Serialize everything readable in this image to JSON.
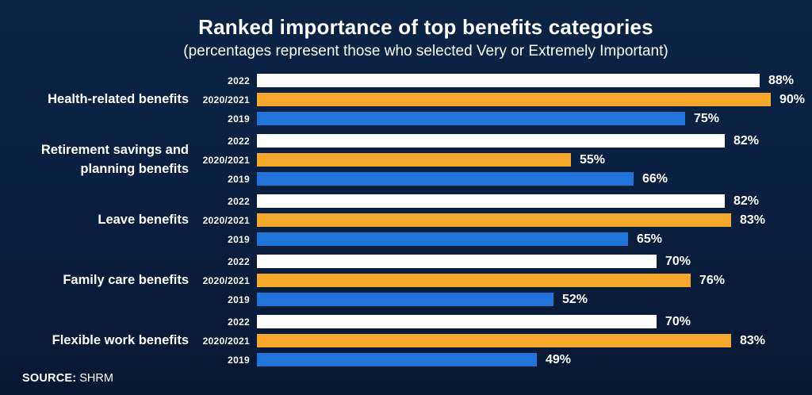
{
  "page": {
    "title": "Ranked importance of top benefits categories",
    "subtitle": "(percentages represent those who selected Very or Extremely Important)",
    "source_label": "SOURCE:",
    "source_value": "SHRM"
  },
  "colors": {
    "background_top": "#0b2444",
    "background_bottom": "#071834",
    "text": "#ffffff",
    "series_2022": "#ffffff",
    "series_2020_2021": "#f6a82c",
    "series_2019": "#2073d8"
  },
  "chart_data": {
    "type": "bar",
    "orientation": "horizontal",
    "title": "Ranked importance of top benefits categories",
    "subtitle": "(percentages represent those who selected Very or Extremely Important)",
    "unit": "%",
    "value_range": [
      0,
      100
    ],
    "grid": false,
    "legend_position": "none (each bar labeled by year)",
    "categories": [
      "Health-related benefits",
      "Retirement savings and planning benefits",
      "Leave benefits",
      "Family care benefits",
      "Flexible work benefits"
    ],
    "series": [
      {
        "name": "2022",
        "color": "#ffffff",
        "values": [
          88,
          82,
          82,
          70,
          70
        ]
      },
      {
        "name": "2020/2021",
        "color": "#f6a82c",
        "values": [
          90,
          55,
          83,
          76,
          83
        ]
      },
      {
        "name": "2019",
        "color": "#2073d8",
        "values": [
          75,
          66,
          65,
          52,
          49
        ]
      }
    ],
    "source": "SHRM"
  }
}
